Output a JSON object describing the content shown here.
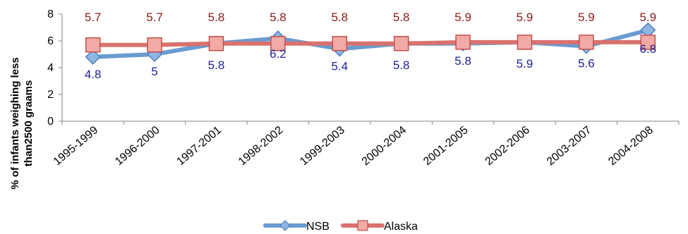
{
  "chart_data": {
    "type": "line",
    "title": "",
    "xlabel": "",
    "ylabel_lines": [
      "% of infants weighing less",
      "than2500 graams"
    ],
    "categories": [
      "1995-1999",
      "1996-2000",
      "1997-2001",
      "1998-2002",
      "1999-2003",
      "2000-2004",
      "2001-2005",
      "2002-2006",
      "2003-2007",
      "2004-2008"
    ],
    "ylim": [
      0,
      8
    ],
    "yticks": [
      0,
      2,
      4,
      6,
      8
    ],
    "grid": false,
    "legend_position": "bottom",
    "series": [
      {
        "name": "NSB",
        "values": [
          4.8,
          5,
          5.8,
          6.2,
          5.4,
          5.8,
          5.8,
          5.9,
          5.6,
          6.8
        ],
        "value_labels": [
          "4.8",
          "5",
          "5.8",
          "6.2",
          "5.4",
          "5.8",
          "5.8",
          "5.9",
          "5.6",
          "6.8"
        ],
        "color": "#6a9bd1",
        "marker": "diamond",
        "label_color": "#1f1f9a"
      },
      {
        "name": "Alaska",
        "values": [
          5.7,
          5.7,
          5.8,
          5.8,
          5.8,
          5.8,
          5.9,
          5.9,
          5.9,
          5.9
        ],
        "value_labels": [
          "5.7",
          "5.7",
          "5.8",
          "5.8",
          "5.8",
          "5.8",
          "5.9",
          "5.9",
          "5.9",
          "5.9"
        ],
        "color": "#d9726e",
        "marker": "square",
        "label_color": "#8b1a1a"
      }
    ]
  }
}
